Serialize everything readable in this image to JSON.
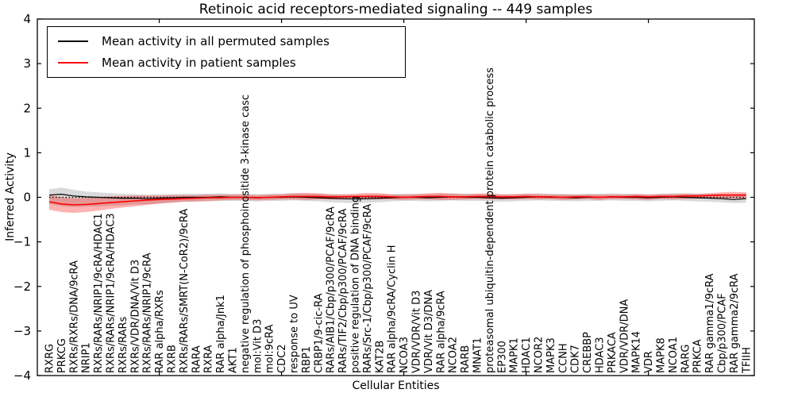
{
  "title": "Retinoic acid receptors-mediated signaling -- 449 samples",
  "axes": {
    "xlabel": "Cellular Entities",
    "ylabel": "Inferred Activity",
    "ylim": [
      -4,
      4
    ],
    "yticks": [
      4,
      3,
      2,
      1,
      0,
      -1,
      -2,
      -3,
      -4
    ],
    "ytick_labels": [
      "4",
      "3",
      "2",
      "1",
      "0",
      "−1",
      "−2",
      "−3",
      "−4"
    ],
    "x_major_tick_indices": [
      9,
      19,
      29,
      39,
      49
    ]
  },
  "legend": {
    "entries": [
      {
        "label": "Mean activity in all permuted samples",
        "color": "#000000"
      },
      {
        "label": "Mean activity in patient samples",
        "color": "#ff0000"
      }
    ]
  },
  "chart_data": {
    "type": "line",
    "title": "Retinoic acid receptors-mediated signaling -- 449 samples",
    "xlabel": "Cellular Entities",
    "ylabel": "Inferred Activity",
    "ylim": [
      -4,
      4
    ],
    "grid": false,
    "legend_position": "upper left",
    "zero_line_style": "dotted",
    "categories": [
      "RXRG",
      "PRKCG",
      "RXRs/RXRs/DNA/9cRA",
      "NRIP1",
      "RXRs/RARs/NRIP1/9cRA/HDAC1",
      "RXRs/RARs/NRIP1/9cRA/HDAC3",
      "RXRs/RARs",
      "RXRs/VDR/DNA/Vit D3",
      "RXRs/RARs/NRIP1/9cRA",
      "RAR alpha/RXRs",
      "RXRB",
      "RXRs/RARs/SMRT(N-CoR2)/9cRA",
      "RARA",
      "RXRA",
      "RAR alpha/Jnk1",
      "AKT1",
      "negative regulation of phosphoinositide 3-kinase casc",
      "mol:Vit D3",
      "mol:9cRA",
      "CDC2",
      "response to UV",
      "RBP1",
      "CRBP1/9-cic-RA",
      "RARs/AIB1/Cbp/p300/PCAF/9cRA",
      "RARs/TIF2/Cbp/p300/PCAF/9cRA",
      "positive regulation of DNA binding",
      "RARs/Src-1/Cbp/p300/PCAF/9cRA",
      "KAT2B",
      "RAR alpha/9cRA/Cyclin H",
      "NCOA3",
      "VDR/VDR/Vit D3",
      "VDR/Vit D3/DNA",
      "RAR alpha/9cRA",
      "NCOA2",
      "RARB",
      "MNAT1",
      "proteasomal ubiquitin-dependent protein catabolic process",
      "EP300",
      "MAPK1",
      "HDAC1",
      "NCOR2",
      "MAPK3",
      "CCNH",
      "CDK7",
      "CREBBP",
      "HDAC3",
      "PRKACA",
      "VDR/VDR/DNA",
      "MAPK14",
      "VDR",
      "MAPK8",
      "NCOA1",
      "RARG",
      "PRKCA",
      "RAR gamma1/9cRA",
      "Cbp/p300/PCAF",
      "RAR gamma2/9cRA",
      "TFIIH"
    ],
    "series": [
      {
        "name": "Mean activity in all permuted samples",
        "color": "#000000",
        "band_color": "rgba(0,0,0,0.15)",
        "values": [
          0.05,
          0.07,
          0.03,
          0.01,
          0.0,
          -0.01,
          -0.02,
          -0.02,
          -0.03,
          -0.02,
          -0.01,
          0.0,
          0.0,
          0.0,
          0.01,
          0.0,
          0.0,
          -0.01,
          0.0,
          0.0,
          0.01,
          0.0,
          -0.01,
          -0.02,
          -0.03,
          -0.04,
          -0.03,
          -0.02,
          -0.01,
          0.0,
          0.0,
          -0.01,
          0.0,
          0.01,
          0.0,
          0.0,
          -0.01,
          -0.02,
          -0.01,
          0.0,
          0.01,
          0.0,
          0.0,
          -0.01,
          0.0,
          0.0,
          0.01,
          0.0,
          0.0,
          -0.01,
          0.0,
          0.01,
          0.0,
          -0.01,
          -0.02,
          -0.03,
          -0.05,
          -0.03
        ],
        "band_upper": [
          0.18,
          0.22,
          0.17,
          0.13,
          0.11,
          0.09,
          0.08,
          0.07,
          0.06,
          0.07,
          0.07,
          0.08,
          0.08,
          0.08,
          0.09,
          0.08,
          0.08,
          0.07,
          0.08,
          0.08,
          0.09,
          0.08,
          0.08,
          0.07,
          0.06,
          0.05,
          0.06,
          0.07,
          0.07,
          0.08,
          0.08,
          0.07,
          0.08,
          0.09,
          0.08,
          0.08,
          0.07,
          0.06,
          0.07,
          0.08,
          0.09,
          0.08,
          0.08,
          0.07,
          0.08,
          0.08,
          0.09,
          0.08,
          0.08,
          0.07,
          0.08,
          0.09,
          0.09,
          0.08,
          0.08,
          0.08,
          0.07,
          0.09
        ],
        "band_lower": [
          -0.15,
          -0.2,
          -0.22,
          -0.21,
          -0.2,
          -0.19,
          -0.18,
          -0.16,
          -0.16,
          -0.14,
          -0.12,
          -0.1,
          -0.1,
          -0.09,
          -0.08,
          -0.08,
          -0.08,
          -0.09,
          -0.08,
          -0.08,
          -0.07,
          -0.08,
          -0.09,
          -0.11,
          -0.12,
          -0.13,
          -0.12,
          -0.11,
          -0.09,
          -0.08,
          -0.08,
          -0.09,
          -0.08,
          -0.07,
          -0.08,
          -0.08,
          -0.09,
          -0.1,
          -0.09,
          -0.08,
          -0.07,
          -0.08,
          -0.08,
          -0.09,
          -0.08,
          -0.08,
          -0.07,
          -0.08,
          -0.08,
          -0.09,
          -0.08,
          -0.07,
          -0.08,
          -0.09,
          -0.1,
          -0.11,
          -0.13,
          -0.12
        ]
      },
      {
        "name": "Mean activity in patient samples",
        "color": "#ff0000",
        "band_color": "rgba(255,0,0,0.30)",
        "values": [
          -0.1,
          -0.15,
          -0.17,
          -0.16,
          -0.14,
          -0.12,
          -0.1,
          -0.08,
          -0.06,
          -0.05,
          -0.04,
          -0.03,
          -0.02,
          -0.01,
          -0.01,
          0.0,
          0.0,
          -0.01,
          0.0,
          0.01,
          0.02,
          0.02,
          0.02,
          0.01,
          0.01,
          0.02,
          0.02,
          0.02,
          0.01,
          0.0,
          0.01,
          0.02,
          0.02,
          0.01,
          0.01,
          0.02,
          0.02,
          0.01,
          0.01,
          0.02,
          0.01,
          0.01,
          0.0,
          0.01,
          0.01,
          0.0,
          0.01,
          0.01,
          0.02,
          0.01,
          0.02,
          0.02,
          0.03,
          0.03,
          0.04,
          0.05,
          0.05,
          0.05
        ],
        "band_upper": [
          0.05,
          0.0,
          -0.02,
          -0.01,
          0.01,
          0.02,
          0.03,
          0.04,
          0.04,
          0.04,
          0.05,
          0.05,
          0.05,
          0.06,
          0.06,
          0.06,
          0.06,
          0.05,
          0.06,
          0.07,
          0.09,
          0.1,
          0.09,
          0.07,
          0.07,
          0.08,
          0.1,
          0.09,
          0.07,
          0.06,
          0.07,
          0.09,
          0.1,
          0.08,
          0.07,
          0.08,
          0.09,
          0.07,
          0.07,
          0.08,
          0.07,
          0.06,
          0.06,
          0.06,
          0.06,
          0.06,
          0.06,
          0.06,
          0.07,
          0.06,
          0.07,
          0.07,
          0.08,
          0.08,
          0.09,
          0.11,
          0.12,
          0.11
        ],
        "band_lower": [
          -0.28,
          -0.33,
          -0.35,
          -0.33,
          -0.3,
          -0.26,
          -0.23,
          -0.2,
          -0.17,
          -0.14,
          -0.12,
          -0.1,
          -0.09,
          -0.08,
          -0.07,
          -0.06,
          -0.06,
          -0.07,
          -0.06,
          -0.05,
          -0.05,
          -0.06,
          -0.05,
          -0.05,
          -0.05,
          -0.04,
          -0.05,
          -0.05,
          -0.05,
          -0.06,
          -0.05,
          -0.05,
          -0.06,
          -0.06,
          -0.05,
          -0.04,
          -0.05,
          -0.05,
          -0.05,
          -0.04,
          -0.05,
          -0.04,
          -0.06,
          -0.05,
          -0.04,
          -0.06,
          -0.04,
          -0.04,
          -0.05,
          -0.06,
          -0.04,
          -0.05,
          -0.04,
          -0.03,
          -0.02,
          -0.03,
          -0.02,
          -0.04
        ]
      }
    ]
  }
}
